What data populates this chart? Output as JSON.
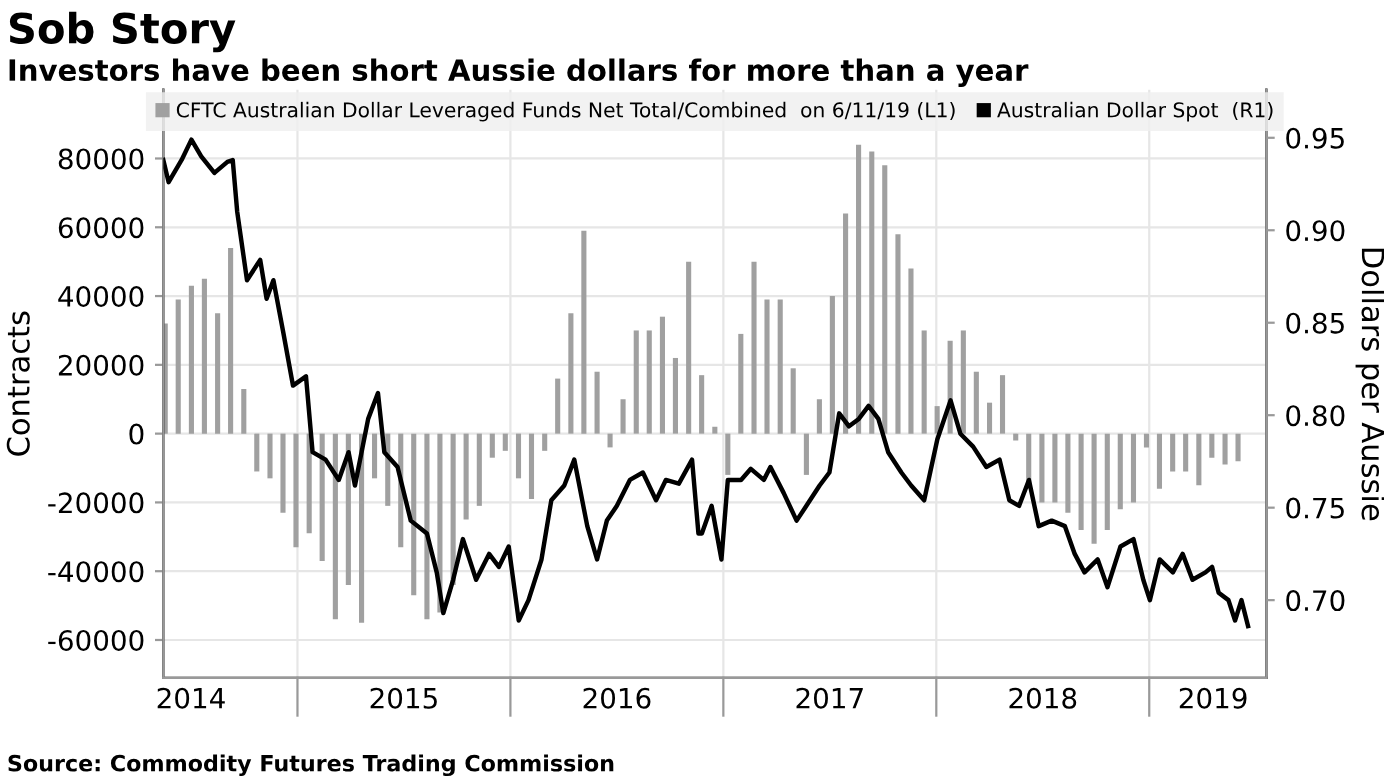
{
  "chart_data": {
    "type": "bar",
    "title": "Sob Story",
    "subtitle": "Investors have been short Aussie dollars for more than a year",
    "ylabel": "Contracts",
    "y2label": "Dollars per Aussie",
    "annotations": [
      "Source: Commodity Futures Trading Commission"
    ],
    "series": [
      {
        "name": "CFTC Australian Dollar Leveraged Funds Net Total/Combined  on 6/11/19 (L1)",
        "color": "#a0a0a0",
        "x": [
          2014.379,
          2014.44,
          2014.502,
          2014.563,
          2014.625,
          2014.686,
          2014.748,
          2014.809,
          2014.871,
          2014.932,
          2014.993,
          2015.055,
          2015.116,
          2015.178,
          2015.239,
          2015.301,
          2015.362,
          2015.424,
          2015.485,
          2015.546,
          2015.608,
          2015.669,
          2015.731,
          2015.792,
          2015.854,
          2015.915,
          2015.976,
          2016.038,
          2016.099,
          2016.161,
          2016.222,
          2016.284,
          2016.345,
          2016.407,
          2016.468,
          2016.529,
          2016.591,
          2016.652,
          2016.714,
          2016.775,
          2016.837,
          2016.898,
          2016.96,
          2017.021,
          2017.082,
          2017.144,
          2017.205,
          2017.267,
          2017.328,
          2017.39,
          2017.451,
          2017.512,
          2017.574,
          2017.635,
          2017.697,
          2017.758,
          2017.82,
          2017.881,
          2017.943,
          2018.004,
          2018.065,
          2018.127,
          2018.188,
          2018.25,
          2018.311,
          2018.373,
          2018.434,
          2018.496,
          2018.557,
          2018.618,
          2018.68,
          2018.741,
          2018.803,
          2018.864,
          2018.926,
          2018.987,
          2019.048,
          2019.11,
          2019.171,
          2019.233,
          2019.294,
          2019.356,
          2019.417
        ],
        "values": [
          32000,
          39000,
          43000,
          45000,
          35000,
          54000,
          13000,
          -11000,
          -13000,
          -23000,
          -33000,
          -29000,
          -37000,
          -54000,
          -44000,
          -55000,
          -13000,
          -21000,
          -33000,
          -47000,
          -54000,
          -52000,
          -44000,
          -25000,
          -21000,
          -7000,
          -5000,
          -13000,
          -19000,
          -5000,
          16000,
          35000,
          59000,
          18000,
          -4000,
          10000,
          30000,
          30000,
          34000,
          22000,
          50000,
          17000,
          2000,
          -12000,
          29000,
          50000,
          39000,
          39000,
          19000,
          -12000,
          10000,
          40000,
          64000,
          84000,
          82000,
          78000,
          58000,
          48000,
          30000,
          8000,
          27000,
          30000,
          18000,
          9000,
          17000,
          -2000,
          -16000,
          -20000,
          -20000,
          -23000,
          -28000,
          -32000,
          -28000,
          -22000,
          -20000,
          -4000,
          -16000,
          -11000,
          -11000,
          -15000,
          -7000,
          -9000,
          -8000
        ]
      },
      {
        "name": "Australian Dollar Spot  (R1)",
        "type": "line",
        "axis": "y2",
        "color": "#000000",
        "x": [
          2014.37,
          2014.395,
          2014.456,
          2014.502,
          2014.548,
          2014.61,
          2014.671,
          2014.696,
          2014.717,
          2014.763,
          2014.825,
          2014.855,
          2014.887,
          2014.933,
          2014.979,
          2015.04,
          2015.071,
          2015.132,
          2015.194,
          2015.24,
          2015.27,
          2015.332,
          2015.378,
          2015.408,
          2015.47,
          2015.532,
          2015.608,
          2015.654,
          2015.685,
          2015.731,
          2015.777,
          2015.839,
          2015.9,
          2015.946,
          2015.992,
          2016.039,
          2016.085,
          2016.146,
          2016.192,
          2016.253,
          2016.3,
          2016.361,
          2016.407,
          2016.453,
          2016.5,
          2016.561,
          2016.622,
          2016.684,
          2016.73,
          2016.791,
          2016.853,
          2016.883,
          2016.899,
          2016.945,
          2016.991,
          2017.021,
          2017.083,
          2017.129,
          2017.19,
          2017.221,
          2017.283,
          2017.344,
          2017.39,
          2017.452,
          2017.498,
          2017.544,
          2017.59,
          2017.636,
          2017.682,
          2017.728,
          2017.774,
          2017.836,
          2017.882,
          2017.943,
          2018.005,
          2018.067,
          2018.113,
          2018.173,
          2018.235,
          2018.297,
          2018.343,
          2018.389,
          2018.435,
          2018.481,
          2018.542,
          2018.604,
          2018.65,
          2018.696,
          2018.758,
          2018.804,
          2018.865,
          2018.926,
          2018.972,
          2019.003,
          2019.049,
          2019.111,
          2019.157,
          2019.203,
          2019.264,
          2019.295,
          2019.326,
          2019.372,
          2019.403,
          2019.433,
          2019.464
        ],
        "values": [
          0.938,
          0.926,
          0.938,
          0.949,
          0.94,
          0.931,
          0.937,
          0.938,
          0.91,
          0.873,
          0.884,
          0.863,
          0.873,
          0.845,
          0.816,
          0.821,
          0.78,
          0.776,
          0.765,
          0.78,
          0.762,
          0.798,
          0.812,
          0.78,
          0.772,
          0.743,
          0.736,
          0.715,
          0.693,
          0.711,
          0.733,
          0.711,
          0.725,
          0.718,
          0.729,
          0.689,
          0.7,
          0.722,
          0.754,
          0.762,
          0.776,
          0.74,
          0.722,
          0.743,
          0.751,
          0.765,
          0.769,
          0.754,
          0.765,
          0.763,
          0.776,
          0.736,
          0.736,
          0.751,
          0.722,
          0.765,
          0.765,
          0.771,
          0.765,
          0.772,
          0.758,
          0.743,
          0.751,
          0.762,
          0.769,
          0.801,
          0.794,
          0.798,
          0.805,
          0.798,
          0.78,
          0.769,
          0.762,
          0.754,
          0.787,
          0.808,
          0.79,
          0.783,
          0.772,
          0.776,
          0.754,
          0.751,
          0.765,
          0.74,
          0.743,
          0.74,
          0.725,
          0.715,
          0.722,
          0.707,
          0.729,
          0.733,
          0.711,
          0.7,
          0.722,
          0.715,
          0.725,
          0.711,
          0.715,
          0.718,
          0.704,
          0.7,
          0.689,
          0.7,
          0.686
        ]
      }
    ],
    "xlim": [
      2014.37,
      2019.55
    ],
    "xticks": [
      {
        "value": 2015,
        "label": null
      },
      {
        "value": 2016,
        "label": null
      },
      {
        "value": 2017,
        "label": null
      },
      {
        "value": 2018,
        "label": null
      },
      {
        "value": 2019,
        "label": null
      },
      {
        "value": 2014.5,
        "label": "2014"
      },
      {
        "value": 2015.5,
        "label": "2015"
      },
      {
        "value": 2016.5,
        "label": "2016"
      },
      {
        "value": 2017.5,
        "label": "2017"
      },
      {
        "value": 2018.5,
        "label": "2018"
      },
      {
        "value": 2019.3,
        "label": "2019"
      }
    ],
    "ylim": [
      -71000,
      100000
    ],
    "yticks": [
      -60000,
      -40000,
      -20000,
      0,
      20000,
      40000,
      60000,
      80000
    ],
    "y2lim": [
      0.658,
      0.976
    ],
    "y2ticks": [
      {
        "value": 0.7,
        "label": "0.70"
      },
      {
        "value": 0.75,
        "label": "0.75"
      },
      {
        "value": 0.8,
        "label": "0.80"
      },
      {
        "value": 0.85,
        "label": "0.85"
      },
      {
        "value": 0.9,
        "label": "0.90"
      },
      {
        "value": 0.95,
        "label": "0.95"
      }
    ],
    "grid": true,
    "legend": "top"
  }
}
